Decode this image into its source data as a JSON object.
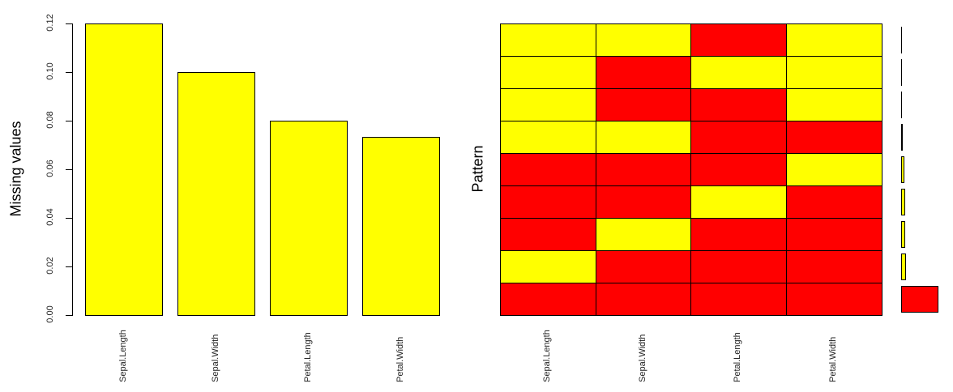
{
  "colors": {
    "missing": "#ffff00",
    "observed": "#ff0000",
    "border": "#000000"
  },
  "chart_data": [
    {
      "type": "bar",
      "title": "",
      "xlabel": "",
      "ylabel": "Missing values",
      "categories": [
        "Sepal.Length",
        "Sepal.Width",
        "Petal.Length",
        "Petal.Width"
      ],
      "values": [
        0.12,
        0.1,
        0.08,
        0.0733
      ],
      "ylim": [
        0,
        0.12
      ],
      "yticks": [
        "0.00",
        "0.02",
        "0.04",
        "0.06",
        "0.08",
        "0.10",
        "0.12"
      ],
      "grid": false,
      "bar_color": "#ffff00"
    },
    {
      "type": "heatmap",
      "title": "",
      "xlabel": "",
      "ylabel": "Pattern",
      "columns": [
        "Sepal.Length",
        "Sepal.Width",
        "Petal.Length",
        "Petal.Width"
      ],
      "legend": {
        "missing": "yellow",
        "observed": "red"
      },
      "patterns": [
        [
          "missing",
          "missing",
          "observed",
          "missing"
        ],
        [
          "missing",
          "observed",
          "missing",
          "missing"
        ],
        [
          "missing",
          "observed",
          "observed",
          "missing"
        ],
        [
          "missing",
          "missing",
          "observed",
          "observed"
        ],
        [
          "observed",
          "observed",
          "observed",
          "missing"
        ],
        [
          "observed",
          "observed",
          "missing",
          "observed"
        ],
        [
          "observed",
          "missing",
          "observed",
          "observed"
        ],
        [
          "missing",
          "observed",
          "observed",
          "observed"
        ],
        [
          "observed",
          "observed",
          "observed",
          "observed"
        ]
      ],
      "pattern_frequency_relative_widths": [
        1,
        1,
        1,
        2,
        4,
        5,
        5,
        6,
        46
      ]
    }
  ]
}
